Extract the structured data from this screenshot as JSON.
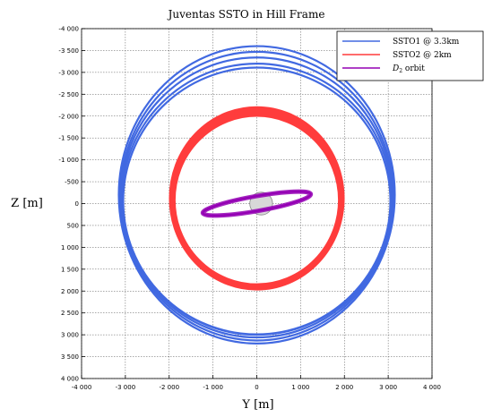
{
  "chart_data": {
    "type": "line",
    "title": "Juventas SSTO in Hill Frame",
    "xlabel": "Y [m]",
    "ylabel": "Z [m]",
    "xlim": [
      -4000,
      4000
    ],
    "ylim": [
      4000,
      -4000
    ],
    "x_ticks": [
      "-4 000",
      "-3 000",
      "-2 000",
      "-1 000",
      "0",
      "1 000",
      "2 000",
      "3 000",
      "4 000"
    ],
    "y_ticks": [
      "-4 000",
      "-3 500",
      "-3 000",
      "-2 500",
      "-2 000",
      "-1 500",
      "-1 000",
      "-500",
      "0",
      "500",
      "1 000",
      "1 500",
      "2 000",
      "2 500",
      "3 000",
      "3 500",
      "4 000"
    ],
    "grid": true,
    "legend_position": "top-right",
    "series": [
      {
        "name": "SSTO1 @ 3.3km",
        "color": "#4169e1",
        "orbits": [
          {
            "cx": 0,
            "cy": -200,
            "rx": 3150,
            "ry": 3400
          },
          {
            "cx": 0,
            "cy": -170,
            "rx": 3120,
            "ry": 3300
          },
          {
            "cx": 0,
            "cy": -140,
            "rx": 3100,
            "ry": 3200
          },
          {
            "cx": 0,
            "cy": -100,
            "rx": 3080,
            "ry": 3100
          },
          {
            "cx": 0,
            "cy": -60,
            "rx": 3050,
            "ry": 3050
          }
        ]
      },
      {
        "name": "SSTO2 @ 2km",
        "color": "#ff3c3c",
        "orbits": [
          {
            "cx": 0,
            "cy": -120,
            "rx": 1950,
            "ry": 2050
          },
          {
            "cx": 0,
            "cy": -100,
            "rx": 1930,
            "ry": 2000
          },
          {
            "cx": 0,
            "cy": -80,
            "rx": 1910,
            "ry": 1960
          }
        ]
      },
      {
        "name": "D_2 orbit",
        "label_italic": "D",
        "label_sub": "2",
        "label_rest": " orbit",
        "color": "#9400b4",
        "orbits": [
          {
            "cx": 0,
            "cy": 0,
            "rx": 1250,
            "ry": 170,
            "angle_deg": -10
          }
        ]
      }
    ],
    "body": {
      "cx": 100,
      "cy": 0,
      "r": 260,
      "color": "#d8d8d8"
    }
  }
}
